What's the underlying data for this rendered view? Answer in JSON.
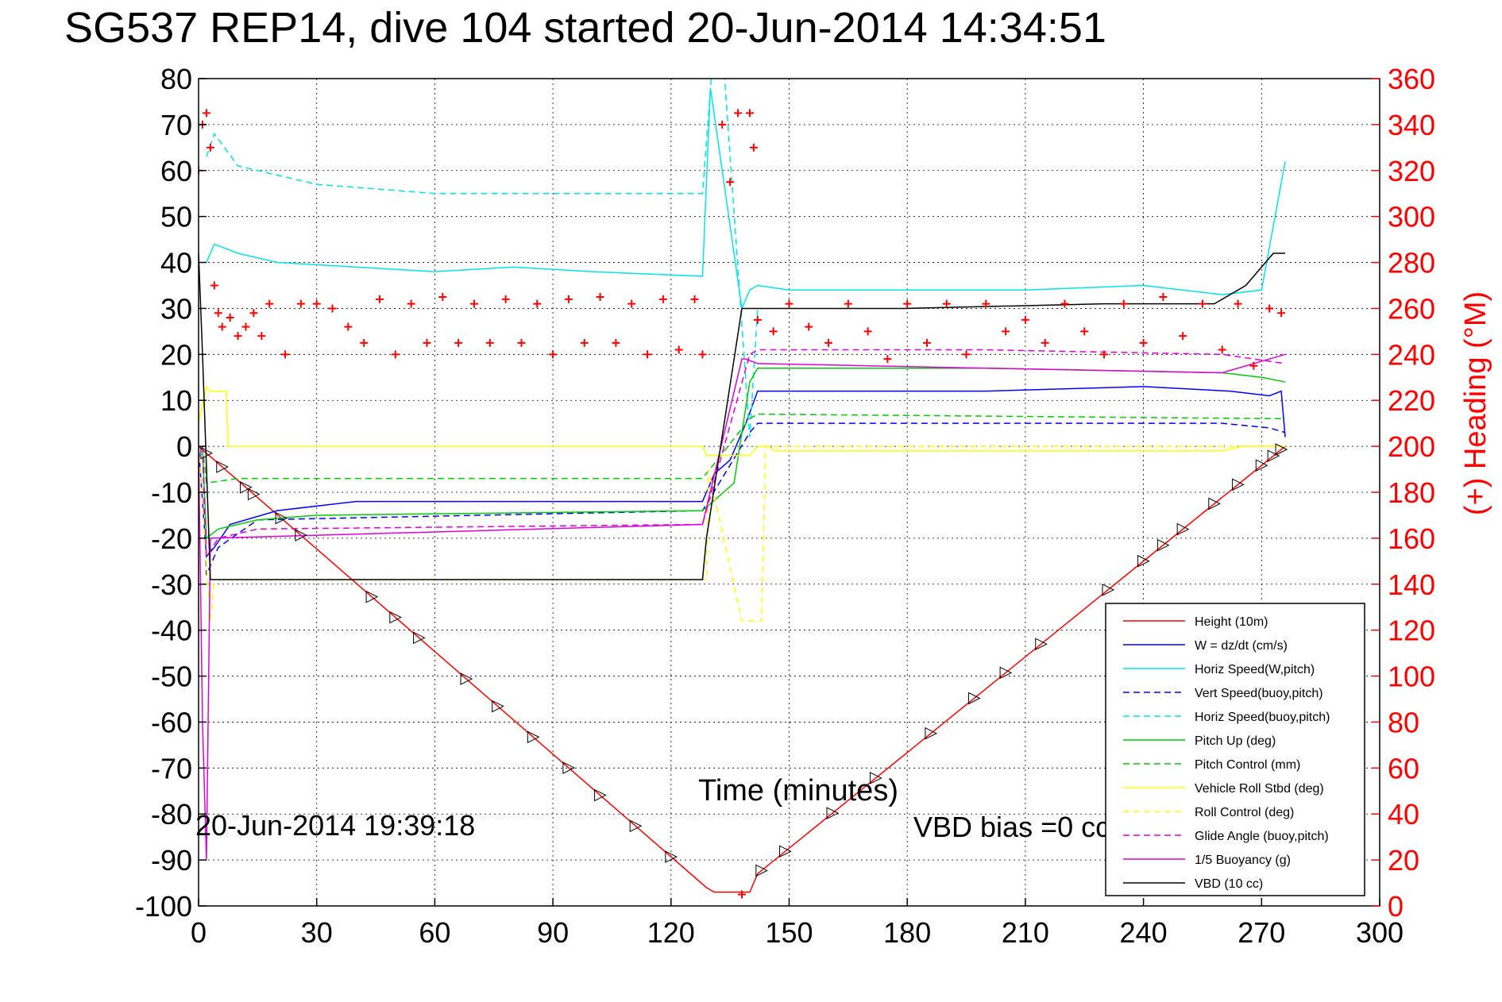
{
  "chart_data": {
    "type": "line",
    "title": "SG537 REP14, dive 104 started 20-Jun-2014 14:34:51",
    "xlabel": "Time (minutes)",
    "ylabel": "",
    "y2label": "(+) Heading (°M)",
    "xlim": [
      0,
      300
    ],
    "ylim": [
      -100,
      80
    ],
    "y2lim": [
      0,
      360
    ],
    "x_ticks": [
      0,
      30,
      60,
      90,
      120,
      150,
      180,
      210,
      240,
      270,
      300
    ],
    "y_ticks": [
      80,
      70,
      60,
      50,
      40,
      30,
      20,
      10,
      0,
      -10,
      -20,
      -30,
      -40,
      -50,
      -60,
      -70,
      -80,
      -90,
      -100
    ],
    "y2_ticks": [
      360,
      340,
      320,
      300,
      280,
      260,
      240,
      220,
      200,
      180,
      160,
      140,
      120,
      100,
      80,
      60,
      40,
      20,
      0
    ],
    "footer_timestamp": "20-Jun-2014 19:39:18",
    "footer_note": "VBD bias =0 cc",
    "grid": true,
    "legend_position": "bottom-right",
    "series": [
      {
        "name": "Height (10m)",
        "color": "#ff0000",
        "style": "solid",
        "x": [
          0,
          129,
          131,
          140,
          142,
          276
        ],
        "y": [
          0,
          -96,
          -97,
          -97,
          -93,
          0
        ]
      },
      {
        "name": "W = dz/dt (cm/s)",
        "color": "#0000ff",
        "style": "solid",
        "x": [
          0,
          2,
          4,
          8,
          20,
          40,
          80,
          128,
          131,
          135,
          139,
          142,
          150,
          200,
          240,
          262,
          272,
          275,
          276
        ],
        "y": [
          0,
          -24,
          -22,
          -17,
          -14,
          -12,
          -12,
          -12,
          -6,
          -3,
          5,
          12,
          12,
          12,
          13,
          12,
          11,
          12,
          2
        ]
      },
      {
        "name": "Horiz Speed(W,pitch)",
        "color": "#00e5e5",
        "style": "solid",
        "x": [
          2,
          4,
          10,
          20,
          40,
          60,
          80,
          100,
          128,
          130,
          138,
          140,
          142,
          150,
          180,
          210,
          240,
          260,
          270,
          276
        ],
        "y": [
          40,
          44,
          42,
          40,
          39,
          38,
          39,
          38,
          37,
          78,
          30,
          34,
          35,
          34,
          34,
          34,
          35,
          33,
          34,
          62
        ]
      },
      {
        "name": "Vert Speed(buoy,pitch)",
        "color": "#0000ff",
        "style": "dashed",
        "x": [
          1,
          2,
          5,
          15,
          128,
          140,
          142,
          200,
          260,
          272,
          276
        ],
        "y": [
          0,
          -28,
          -22,
          -16,
          -14,
          3,
          5,
          5,
          5,
          4,
          3
        ]
      },
      {
        "name": "Horiz Speed(buoy,pitch)",
        "color": "#00e5e5",
        "style": "dashed",
        "x": [
          2,
          4,
          10,
          30,
          60,
          90,
          128,
          132,
          140,
          142
        ],
        "y": [
          63,
          68,
          61,
          57,
          55,
          55,
          55,
          100,
          2,
          30
        ]
      },
      {
        "name": "Pitch Up (deg)",
        "color": "#00cc00",
        "style": "solid",
        "x": [
          1,
          2,
          5,
          15,
          30,
          128,
          136,
          140,
          142,
          200,
          260,
          270,
          276
        ],
        "y": [
          0,
          -20,
          -18,
          -16,
          -15,
          -14,
          -8,
          14,
          17,
          17,
          16,
          15,
          14
        ]
      },
      {
        "name": "Pitch Control (mm)",
        "color": "#00cc00",
        "style": "dashed",
        "x": [
          1,
          2,
          10,
          30,
          128,
          140,
          142,
          276
        ],
        "y": [
          0,
          -8,
          -7,
          -7,
          -7,
          6,
          7,
          6
        ]
      },
      {
        "name": "Vehicle Roll Stbd (deg)",
        "color": "#ffff00",
        "style": "solid",
        "x": [
          0,
          2,
          3,
          7,
          7.5,
          128,
          129,
          140,
          142,
          145,
          146,
          260,
          265,
          270,
          276
        ],
        "y": [
          5,
          13,
          12,
          12,
          0,
          0,
          -2,
          -2,
          0,
          0,
          -1,
          -1,
          0,
          0,
          0
        ]
      },
      {
        "name": "Roll Control (deg)",
        "color": "#ffff00",
        "style": "dashed",
        "x": [
          0,
          3,
          4,
          129,
          129.5,
          138,
          143,
          144,
          276
        ],
        "y": [
          0,
          -38,
          -29,
          -29,
          -5,
          -38,
          -38,
          0,
          0
        ]
      },
      {
        "name": "Glide Angle (buoy,pitch)",
        "color": "#dd00dd",
        "style": "dashed",
        "x": [
          1,
          2,
          5,
          15,
          128,
          140,
          142,
          200,
          260,
          276
        ],
        "y": [
          0,
          -24,
          -20,
          -18,
          -17,
          20,
          21,
          21,
          20,
          18
        ]
      },
      {
        "name": "1/5 Buoyancy (g)",
        "color": "#dd00dd",
        "style": "solid",
        "x": [
          0,
          1,
          2,
          3,
          128,
          138,
          139,
          142,
          200,
          260,
          276
        ],
        "y": [
          0,
          -60,
          -90,
          -20,
          -17,
          19,
          19,
          18,
          17,
          16,
          20
        ]
      },
      {
        "name": "VBD (10 cc)",
        "color": "#000000",
        "style": "solid",
        "x": [
          0,
          1,
          3,
          128,
          129,
          138,
          140,
          180,
          230,
          258,
          266,
          272,
          273,
          276
        ],
        "y": [
          42,
          20,
          -29,
          -29,
          -20,
          30,
          30,
          30,
          31,
          31,
          35,
          41,
          42,
          42
        ]
      },
      {
        "name": "(+) Heading",
        "color": "#ff0000",
        "style": "markers",
        "axis": "right",
        "x": [
          0,
          1,
          2,
          3,
          4,
          5,
          6,
          8,
          10,
          12,
          14,
          16,
          18,
          22,
          26,
          30,
          34,
          38,
          42,
          46,
          50,
          54,
          58,
          62,
          66,
          70,
          74,
          78,
          82,
          86,
          90,
          94,
          98,
          102,
          106,
          110,
          114,
          118,
          122,
          126,
          128,
          133,
          135,
          137,
          138,
          140,
          141,
          142,
          146,
          150,
          155,
          160,
          165,
          170,
          175,
          180,
          185,
          190,
          195,
          200,
          205,
          210,
          215,
          220,
          225,
          230,
          235,
          240,
          245,
          250,
          255,
          260,
          264,
          268,
          272,
          275
        ],
        "y": [
          320,
          340,
          345,
          330,
          270,
          258,
          252,
          256,
          248,
          252,
          258,
          248,
          262,
          240,
          262,
          262,
          260,
          252,
          245,
          264,
          240,
          262,
          245,
          265,
          245,
          262,
          245,
          264,
          245,
          262,
          240,
          264,
          245,
          265,
          245,
          262,
          240,
          264,
          242,
          264,
          240,
          340,
          315,
          345,
          5,
          345,
          330,
          255,
          250,
          262,
          252,
          245,
          262,
          250,
          238,
          262,
          245,
          262,
          240,
          262,
          250,
          255,
          245,
          262,
          250,
          240,
          262,
          245,
          265,
          248,
          262,
          242,
          262,
          235,
          260,
          258
        ]
      }
    ]
  }
}
